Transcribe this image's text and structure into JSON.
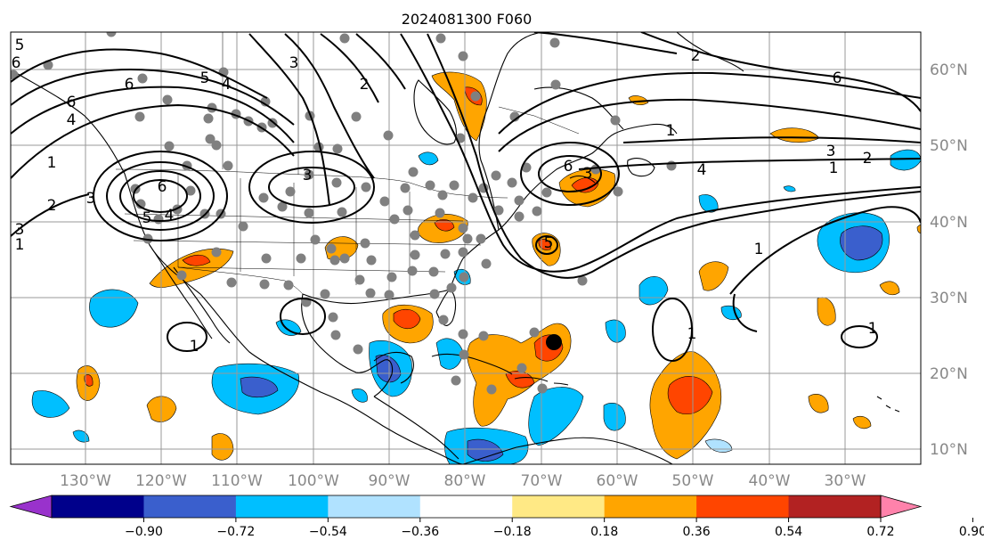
{
  "title": "2024081300 F060",
  "lon_labels": [
    "130°W",
    "120°W",
    "110°W",
    "100°W",
    "90°W",
    "80°W",
    "70°W",
    "60°W",
    "50°W",
    "40°W",
    "30°W"
  ],
  "lat_labels": [
    "60°N",
    "50°N",
    "40°N",
    "30°N",
    "20°N",
    "10°N"
  ],
  "colorbar": {
    "tick_labels": [
      "−0.90",
      "−0.72",
      "−0.54",
      "−0.36",
      "−0.18",
      "0.18",
      "0.36",
      "0.54",
      "0.72",
      "0.90"
    ],
    "colors": [
      "#9932cc",
      "#00008b",
      "#3a5fcd",
      "#00bfff",
      "#b0e2ff",
      "#ffffff",
      "#ffe985",
      "#ffa500",
      "#ff4500",
      "#b22222",
      "#ff82ab"
    ]
  },
  "contour_labels": [
    "5",
    "6",
    "6",
    "5",
    "4",
    "3",
    "6",
    "4",
    "1",
    "2",
    "3",
    "6",
    "5",
    "4",
    "3",
    "2",
    "3",
    "1",
    "6",
    "3",
    "2",
    "5",
    "6",
    "1",
    "3",
    "2",
    "1",
    "4",
    "1",
    "1",
    "1",
    "1"
  ],
  "tc_marker_icon": "black-dot-icon",
  "station_marker_icon": "gray-dot-icon"
}
